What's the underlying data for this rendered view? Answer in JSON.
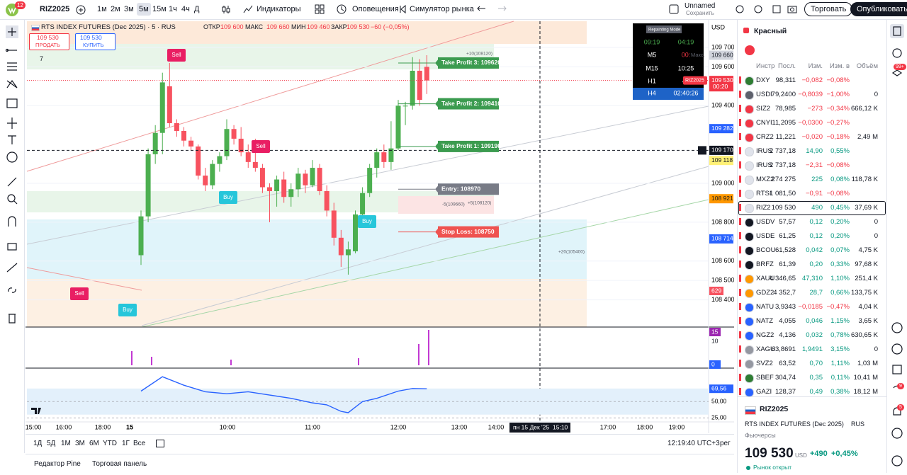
{
  "top_bar": {
    "badge": "12",
    "symbol": "RIZ2025",
    "intervals": [
      "1м",
      "2м",
      "3м",
      "5м",
      "15м",
      "1ч",
      "4ч",
      "Д"
    ],
    "indicators": "Индикаторы",
    "alerts": "Оповещения",
    "replay": "Симулятор рынка",
    "layout_name": "Unnamed",
    "save_status": "Сохранить",
    "trade": "Торговать",
    "publish": "Опубликовать"
  },
  "legend": {
    "title": "RTS INDEX FUTURES (Dec 2025) · 5 · RUS",
    "ohlc": [
      [
        "ОТКР",
        "109 600"
      ],
      [
        "МАКС",
        "109 660"
      ],
      [
        "МИН",
        "109 460"
      ],
      [
        "ЗАКР",
        "109 530"
      ]
    ],
    "change": "−60 (−0,05%)",
    "sell_price": "109 530",
    "sell": "ПРОДАТЬ",
    "buy_price": "109 530",
    "buy": "КУПИТЬ",
    "indicator_count": "7"
  },
  "price_chart": {
    "type": "candlestick",
    "x": [
      "09:00",
      "09:05",
      "09:10",
      "09:15",
      "09:20",
      "09:25",
      "09:30",
      "09:35",
      "09:40",
      "09:45",
      "09:50",
      "09:55",
      "10:00",
      "10:05",
      "10:10",
      "10:15",
      "10:20",
      "10:25",
      "10:30",
      "10:35",
      "10:40",
      "10:45",
      "10:50",
      "10:55",
      "11:00",
      "11:05",
      "11:10",
      "11:15",
      "11:20",
      "11:25",
      "11:30",
      "11:35",
      "11:40",
      "11:45",
      "11:50",
      "11:55",
      "12:00",
      "12:05",
      "12:10",
      "12:15",
      "12:20"
    ],
    "open": [
      108630,
      108830,
      109150,
      109260,
      109500,
      109310,
      109270,
      109220,
      109190,
      109040,
      108990,
      109100,
      109140,
      109280,
      109230,
      109160,
      109110,
      109080,
      108980,
      108960,
      109020,
      108930,
      108970,
      109050,
      108990,
      109080,
      108960,
      108860,
      108720,
      108630,
      108650,
      108840,
      108950,
      109080,
      109160,
      109110,
      109180,
      109400,
      109400,
      109580,
      109600
    ],
    "high": [
      108860,
      109180,
      109300,
      109570,
      109620,
      109330,
      109290,
      109240,
      109200,
      109080,
      109120,
      109160,
      109330,
      109300,
      109290,
      109200,
      109230,
      109100,
      109000,
      109040,
      109060,
      109000,
      109080,
      109070,
      109120,
      109100,
      108990,
      108900,
      108760,
      108700,
      108860,
      108980,
      109100,
      109180,
      109200,
      109320,
      109430,
      109420,
      109650,
      109640,
      109660
    ],
    "low": [
      108580,
      108800,
      109100,
      109150,
      109290,
      109240,
      109190,
      109170,
      109020,
      108960,
      108970,
      109060,
      109120,
      109200,
      109140,
      109080,
      109060,
      108950,
      108800,
      108880,
      108900,
      108880,
      108930,
      108950,
      108980,
      108940,
      108830,
      108680,
      108570,
      108530,
      108640,
      108820,
      108930,
      109030,
      109080,
      109070,
      109170,
      109300,
      109380,
      109400,
      109460
    ],
    "close": [
      108830,
      109150,
      109260,
      109520,
      109310,
      109270,
      109220,
      109190,
      109040,
      108990,
      109100,
      109140,
      109280,
      109230,
      109160,
      109110,
      109080,
      108980,
      108960,
      109020,
      108930,
      108970,
      109050,
      108990,
      109080,
      108960,
      108860,
      108720,
      108630,
      108660,
      108840,
      108950,
      109080,
      109160,
      109110,
      109180,
      109400,
      109400,
      109580,
      109430,
      109530
    ],
    "up_color": "#4caf50",
    "down_color": "#f7525f",
    "ylim": [
      108260,
      109835
    ],
    "currency": "USD",
    "yticks": [
      {
        "value": 109700,
        "label": "109 700"
      },
      {
        "value": 109600,
        "label": "109 600"
      },
      {
        "value": 109400,
        "label": "109 400"
      },
      {
        "value": 109000,
        "label": "109 000"
      },
      {
        "value": 108800,
        "label": "108 800"
      },
      {
        "value": 108600,
        "label": "108 600"
      },
      {
        "value": 108500,
        "label": "108 500"
      },
      {
        "value": 108400,
        "label": "108 400"
      }
    ],
    "price_markers": [
      {
        "value": 109660,
        "label": "109 660",
        "bg": "#d1d4dc",
        "fg": "#131722",
        "note": "Макс."
      },
      {
        "value": 109530,
        "label": "109 530",
        "bg": "#f23645",
        "fg": "#ffffff",
        "sub": "00:20",
        "tag": "RIZ2025"
      },
      {
        "value": 109282,
        "label": "109 282",
        "bg": "#2962ff",
        "fg": "#ffffff"
      },
      {
        "value": 109170,
        "label": "109 170",
        "bg": "#131722",
        "fg": "#ffffff"
      },
      {
        "value": 109118,
        "label": "109 118",
        "bg": "#fff176",
        "fg": "#131722"
      },
      {
        "value": 108921,
        "label": "108 921",
        "bg": "#ff9800",
        "fg": "#131722"
      },
      {
        "value": 108714,
        "label": "108 714",
        "bg": "#2962ff",
        "fg": "#ffffff"
      }
    ],
    "volume_label": "629",
    "trade_levels": [
      {
        "label": "Take Profit 3: 109620",
        "value": 109620,
        "color": "#3b9b4f"
      },
      {
        "label": "Take Profit 2: 109410",
        "value": 109410,
        "color": "#3b9b4f"
      },
      {
        "label": "Take Profit 1: 109190",
        "value": 109190,
        "color": "#3b9b4f"
      },
      {
        "label": "Entry: 108970",
        "value": 108970,
        "color": "#787b86"
      },
      {
        "label": "Stop Loss: 108750",
        "value": 108750,
        "color": "#ef5350"
      }
    ],
    "signals": [
      {
        "label": "Sell",
        "color": "#e91e63"
      },
      {
        "label": "Sell",
        "color": "#e91e63"
      },
      {
        "label": "Sell",
        "color": "#e91e63"
      },
      {
        "label": "Buy",
        "color": "#26c6da"
      },
      {
        "label": "Buy",
        "color": "#26c6da"
      },
      {
        "label": "Buy",
        "color": "#26c6da"
      }
    ],
    "notes": [
      "+10(108120)",
      "-5(109660)",
      "+5(108120)",
      "+20(105400)"
    ],
    "xticks": [
      "15:00",
      "16:00",
      "18:00",
      "15",
      "10:00",
      "11:00",
      "12:00",
      "13:00",
      "14:00",
      "17:00",
      "18:00",
      "19:00"
    ],
    "crosshair": {
      "date": "пн 15 Дек '25",
      "time": "15:10",
      "value": 109170
    }
  },
  "indicator_pane": {
    "labels": [
      "15",
      "10",
      "0"
    ]
  },
  "rsi_pane": {
    "x": [
      "09:00",
      "09:15",
      "09:30",
      "09:45",
      "10:00",
      "10:15",
      "10:30",
      "10:45",
      "11:00",
      "11:10",
      "11:20",
      "11:25",
      "11:35",
      "11:45",
      "12:00",
      "12:10",
      "12:20"
    ],
    "values": [
      66,
      88,
      75,
      65,
      62,
      65,
      60,
      55,
      48,
      45,
      35,
      33,
      50,
      55,
      66,
      70,
      69.56
    ],
    "value_labels_last": "69,56",
    "color": "#2962ff",
    "ylim": [
      20,
      99
    ],
    "yticks": [
      {
        "value": 50,
        "label": "50,00"
      },
      {
        "value": 25,
        "label": "25,00"
      }
    ]
  },
  "timer": {
    "title": "Repainting Mode",
    "rows": [
      [
        "09:19",
        "04:19"
      ],
      [
        "M5",
        "00:"
      ],
      [
        "M15",
        "10:25"
      ],
      [
        "H1",
        "40"
      ],
      [
        "H4",
        "02:40:26"
      ]
    ]
  },
  "bottom_bar": {
    "ranges": [
      "1Д",
      "5Д",
      "1М",
      "3М",
      "6М",
      "YTD",
      "1Г",
      "Все"
    ],
    "clock": "12:19:40 UTC+3",
    "session": "рег",
    "tabs": [
      "Редактор Pine",
      "Торговая панель"
    ]
  },
  "watchlist": {
    "name": "Красный",
    "columns": [
      "Инстр",
      "Посл.",
      "Изм.",
      "Изм. в",
      "Объём"
    ],
    "rows": [
      [
        "DXY",
        "98,311",
        "−0,082",
        "−0,08%"
      ],
      [
        "USDI",
        "79,2400",
        "−0,8039",
        "−1,00%",
        "0"
      ],
      [
        "SIZ2",
        "78,985",
        "−273",
        "−0,34%",
        "666,12 K"
      ],
      [
        "CNYI",
        "11,2095",
        "−0,0300",
        "−0,27%"
      ],
      [
        "CRZ2",
        "11,221",
        "−0,020",
        "−0,18%",
        "2,49 M"
      ],
      [
        "IRUS",
        "2 737,18",
        "14,90",
        "0,55%"
      ],
      [
        "IRUS",
        "2 737,18",
        "−2,31",
        "−0,08%"
      ],
      [
        "MXZ2",
        "274 275",
        "225",
        "0,08%",
        "118,78 K"
      ],
      [
        "RTSI",
        "1 081,50",
        "−0,91",
        "−0,08%"
      ],
      [
        "RIZ2",
        "109 530",
        "490",
        "0,45%",
        "37,69 K"
      ],
      [
        "USDV",
        "57,57",
        "0,12",
        "0,20%",
        "0"
      ],
      [
        "USDE",
        "61,25",
        "0,12",
        "0,20%",
        "0"
      ],
      [
        "BCOU",
        "61,528",
        "0,042",
        "0,07%",
        "4,75 K"
      ],
      [
        "BRFZ",
        "61,39",
        "0,20",
        "0,33%",
        "97,68 K"
      ],
      [
        "XAUU",
        "4 346,65",
        "47,310",
        "1,10%",
        "251,4 K"
      ],
      [
        "GDZ2",
        "4 352,7",
        "28,7",
        "0,66%",
        "133,75 K"
      ],
      [
        "NATU",
        "3,9343",
        "−0,0185",
        "−0,47%",
        "4,04 K"
      ],
      [
        "NATZ",
        "4,055",
        "0,046",
        "1,15%",
        "3,65 K"
      ],
      [
        "NGZ2",
        "4,136",
        "0,032",
        "0,78%",
        "630,65 K"
      ],
      [
        "XAGU",
        "63,8691",
        "1,9491",
        "3,15%",
        "0"
      ],
      [
        "SVZ2",
        "63,52",
        "0,70",
        "1,11%",
        "1,03 M"
      ],
      [
        "SBEF",
        "304,74",
        "0,35",
        "0,11%",
        "10,41 M"
      ],
      [
        "GAZI",
        "128,37",
        "0,49",
        "0,38%",
        "18,12 M"
      ]
    ]
  },
  "details": {
    "symbol": "RIZ2025",
    "description": "RTS INDEX FUTURES (Dec 2025)",
    "exchange": "RUS",
    "kind": "Фьючерсы",
    "price": "109 530",
    "currency": "USD",
    "change": "+490",
    "change_percent": "+0,45%",
    "status": "Рынок открыт"
  },
  "side_badges": [
    "99+",
    "9",
    "5"
  ]
}
